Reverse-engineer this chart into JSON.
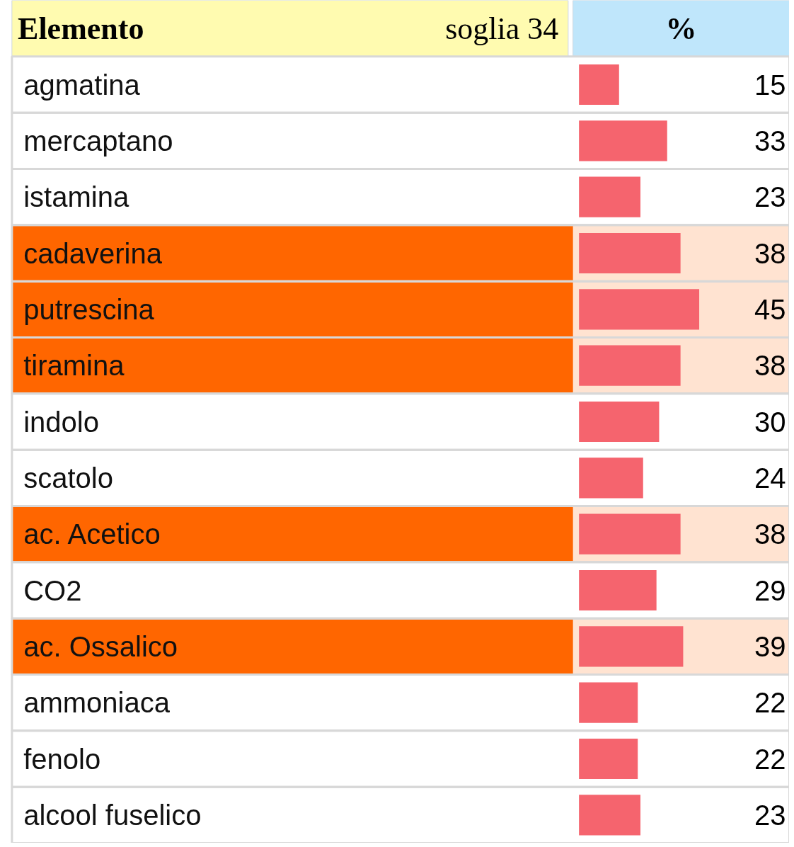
{
  "chart_data": {
    "type": "bar",
    "orientation": "horizontal",
    "ylabel": "Elemento",
    "xlabel": "%",
    "annotations": [
      "soglia 34"
    ],
    "categories": [
      "agmatina",
      "mercaptano",
      "istamina",
      "cadaverina",
      "putrescina",
      "tiramina",
      "indolo",
      "scatolo",
      "ac. Acetico",
      "CO2",
      "ac. Ossalico",
      "ammoniaca",
      "fenolo",
      "alcool fuselico"
    ],
    "values": [
      15,
      33,
      23,
      38,
      45,
      38,
      30,
      24,
      38,
      29,
      39,
      22,
      22,
      23
    ],
    "color": "#f5646e",
    "data_labels": true,
    "bands": [
      {
        "axis": "y",
        "from": "cadaverina",
        "to": "tiramina",
        "color": "#ff6600"
      },
      {
        "axis": "y",
        "from": "ac. Acetico",
        "to": "ac. Acetico",
        "color": "#ff6600"
      },
      {
        "axis": "y",
        "from": "ac. Ossalico",
        "to": "ac. Ossalico",
        "color": "#ff6600"
      }
    ]
  }
}
